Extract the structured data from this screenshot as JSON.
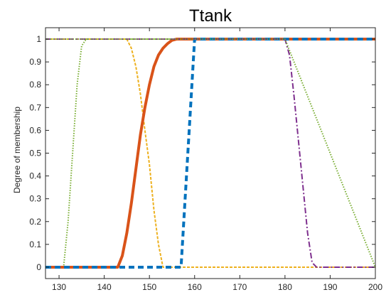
{
  "chart_data": {
    "type": "line",
    "title": "Ttank",
    "xlabel": "",
    "ylabel": "Degree of membership",
    "xlim": [
      127,
      200
    ],
    "ylim": [
      -0.05,
      1.05
    ],
    "xticks": [
      130,
      140,
      150,
      160,
      170,
      180,
      190,
      200
    ],
    "yticks": [
      0,
      0.1,
      0.2,
      0.3,
      0.4,
      0.5,
      0.6,
      0.7,
      0.8,
      0.9,
      1
    ],
    "grid": false,
    "legend": "none",
    "series": [
      {
        "color": "#77AC30",
        "style": "dotted",
        "width": 2,
        "points": [
          [
            127,
            0
          ],
          [
            131,
            0
          ],
          [
            132,
            0.2
          ],
          [
            133,
            0.5
          ],
          [
            134,
            0.8
          ],
          [
            135,
            0.97
          ],
          [
            136,
            1
          ],
          [
            200,
            1
          ]
        ]
      },
      {
        "color": "#EDB120",
        "style": "dashed-fine",
        "width": 2,
        "points": [
          [
            127,
            1
          ],
          [
            145,
            1
          ],
          [
            146,
            0.96
          ],
          [
            147,
            0.88
          ],
          [
            148,
            0.76
          ],
          [
            149,
            0.6
          ],
          [
            150,
            0.45
          ],
          [
            151,
            0.25
          ],
          [
            152,
            0.1
          ],
          [
            153,
            0
          ],
          [
            200,
            0
          ]
        ]
      },
      {
        "color": "#D95319",
        "style": "solid",
        "width": 4,
        "points": [
          [
            127,
            0
          ],
          [
            143,
            0
          ],
          [
            144,
            0.05
          ],
          [
            145,
            0.15
          ],
          [
            146,
            0.28
          ],
          [
            147,
            0.43
          ],
          [
            148,
            0.58
          ],
          [
            149,
            0.7
          ],
          [
            150,
            0.8
          ],
          [
            151,
            0.88
          ],
          [
            152,
            0.93
          ],
          [
            153,
            0.96
          ],
          [
            154,
            0.98
          ],
          [
            155,
            0.995
          ],
          [
            156,
            1
          ],
          [
            200,
            1
          ]
        ]
      },
      {
        "color": "#0072BD",
        "style": "dashed",
        "width": 4,
        "points": [
          [
            127,
            0
          ],
          [
            157,
            0
          ],
          [
            160,
            1
          ],
          [
            200,
            1
          ]
        ]
      },
      {
        "color": "#7E2F8E",
        "style": "dashdot",
        "width": 2,
        "points": [
          [
            127,
            1
          ],
          [
            180,
            1
          ],
          [
            181,
            0.93
          ],
          [
            182,
            0.75
          ],
          [
            183,
            0.55
          ],
          [
            184,
            0.35
          ],
          [
            185,
            0.15
          ],
          [
            186,
            0.02
          ],
          [
            187,
            0
          ],
          [
            200,
            0
          ]
        ]
      },
      {
        "color": "#77AC30",
        "style": "dotted",
        "width": 2,
        "points": [
          [
            127,
            1
          ],
          [
            180,
            1
          ],
          [
            200,
            0
          ]
        ]
      }
    ]
  }
}
